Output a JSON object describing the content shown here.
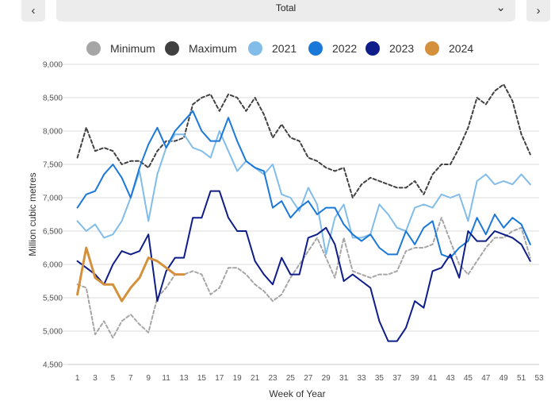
{
  "controls": {
    "prev_label": "‹",
    "next_label": "›",
    "selected_region": "Total",
    "caret": "⌄"
  },
  "chart_data": {
    "type": "line",
    "title": "",
    "xlabel": "Week of Year",
    "ylabel": "Million cubic metres",
    "xlim": [
      0.5,
      53
    ],
    "ylim": [
      4500,
      9000
    ],
    "x_ticks": [
      1,
      3,
      5,
      7,
      9,
      11,
      13,
      15,
      17,
      19,
      21,
      23,
      25,
      27,
      29,
      31,
      33,
      35,
      37,
      39,
      41,
      43,
      45,
      47,
      49,
      51,
      53
    ],
    "y_ticks": [
      4500,
      5000,
      5500,
      6000,
      6500,
      7000,
      7500,
      8000,
      8500,
      9000
    ],
    "y_tick_labels": [
      "4,500",
      "5,000",
      "5,500",
      "6,000",
      "6,500",
      "7,000",
      "7,500",
      "8,000",
      "8,500",
      "9,000"
    ],
    "grid": true,
    "legend_position": "top",
    "series": [
      {
        "name": "Minimum",
        "color": "#a6a6a6",
        "dashed": true,
        "values": [
          5700,
          5650,
          4950,
          5150,
          4900,
          5150,
          5250,
          5100,
          4980,
          5500,
          5650,
          5850,
          5850,
          5900,
          5850,
          5550,
          5650,
          5950,
          5950,
          5850,
          5700,
          5600,
          5450,
          5550,
          5800,
          6000,
          6200,
          6400,
          6100,
          5800,
          6400,
          5900,
          5850,
          5800,
          5850,
          5850,
          5900,
          6200,
          6250,
          6250,
          6300,
          6700,
          6350,
          6000,
          5850,
          6050,
          6250,
          6400,
          6400,
          6500,
          6550,
          6100
        ]
      },
      {
        "name": "Maximum",
        "color": "#404040",
        "dashed": true,
        "values": [
          7600,
          8050,
          7700,
          7750,
          7700,
          7500,
          7550,
          7550,
          7450,
          7700,
          7850,
          7850,
          7900,
          8400,
          8500,
          8550,
          8300,
          8550,
          8500,
          8300,
          8500,
          8250,
          7900,
          8100,
          7900,
          7850,
          7600,
          7550,
          7450,
          7400,
          7450,
          7000,
          7200,
          7300,
          7250,
          7200,
          7150,
          7150,
          7250,
          7050,
          7350,
          7500,
          7500,
          7750,
          8050,
          8500,
          8400,
          8600,
          8700,
          8450,
          7950,
          7650
        ]
      },
      {
        "name": "2021",
        "color": "#82bce8",
        "dashed": false,
        "values": [
          6650,
          6500,
          6600,
          6400,
          6450,
          6650,
          7000,
          7400,
          6650,
          7350,
          7750,
          7950,
          7950,
          7750,
          7700,
          7600,
          8000,
          7700,
          7400,
          7550,
          7450,
          7350,
          7500,
          7050,
          7000,
          6800,
          7150,
          6900,
          6150,
          6700,
          6900,
          6400,
          6400,
          6450,
          6900,
          6750,
          6550,
          6500,
          6850,
          6900,
          6850,
          7050,
          7000,
          7050,
          6650,
          7250,
          7350,
          7200,
          7250,
          7200,
          7350,
          7200
        ]
      },
      {
        "name": "2022",
        "color": "#1a78d9",
        "dashed": false,
        "values": [
          6850,
          7050,
          7100,
          7350,
          7500,
          7300,
          7000,
          7450,
          7800,
          8050,
          7750,
          8000,
          8150,
          8300,
          8000,
          7850,
          7850,
          8200,
          7850,
          7550,
          7450,
          7400,
          6850,
          6950,
          6700,
          6850,
          6950,
          6750,
          6850,
          6850,
          6600,
          6450,
          6350,
          6450,
          6250,
          6150,
          6150,
          6500,
          6300,
          6550,
          6650,
          6150,
          6100,
          6250,
          6350,
          6700,
          6450,
          6750,
          6550,
          6700,
          6600,
          6300
        ]
      },
      {
        "name": "2023",
        "color": "#0e1d8a",
        "dashed": false,
        "values": [
          6050,
          5950,
          5850,
          5700,
          6000,
          6200,
          6150,
          6200,
          6450,
          5450,
          5900,
          6100,
          6100,
          6700,
          6700,
          7100,
          7100,
          6700,
          6500,
          6500,
          6050,
          5850,
          5700,
          6100,
          5850,
          5850,
          6400,
          6450,
          6550,
          6300,
          5750,
          5850,
          5750,
          5650,
          5150,
          4850,
          4850,
          5050,
          5450,
          5350,
          5900,
          5950,
          6150,
          5800,
          6500,
          6350,
          6350,
          6500,
          6450,
          6400,
          6300,
          6050
        ]
      },
      {
        "name": "2024",
        "color": "#d4903a",
        "dashed": false,
        "values": [
          5550,
          6250,
          5800,
          5700,
          5700,
          5450,
          5650,
          5800,
          6100,
          6050,
          5950,
          5850,
          5850
        ]
      }
    ]
  }
}
